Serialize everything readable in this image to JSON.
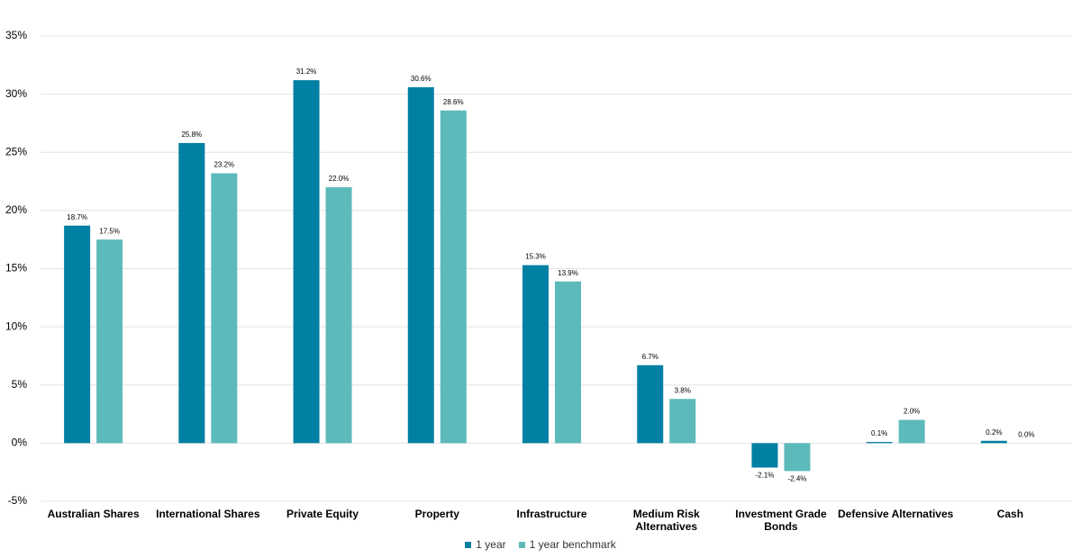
{
  "chart_data": {
    "type": "bar",
    "categories": [
      "Australian Shares",
      "International Shares",
      "Private Equity",
      "Property",
      "Infrastructure",
      "Medium Risk\nAlternatives",
      "Investment Grade\nBonds",
      "Defensive Alternatives",
      "Cash"
    ],
    "series": [
      {
        "name": "1 year",
        "color": "#0080a3",
        "values": [
          18.7,
          25.8,
          31.2,
          30.6,
          15.3,
          6.7,
          -2.1,
          0.1,
          0.2
        ],
        "value_labels": [
          "18.7%",
          "25.8%",
          "31.2%",
          "30.6%",
          "15.3%",
          "6.7%",
          "-2.1%",
          "0.1%",
          "0.2%"
        ]
      },
      {
        "name": "1 year benchmark",
        "color": "#5dbaba",
        "values": [
          17.5,
          23.2,
          22.0,
          28.6,
          13.9,
          3.8,
          -2.4,
          2.0,
          0.0
        ],
        "value_labels": [
          "17.5%",
          "23.2%",
          "22.0%",
          "28.6%",
          "13.9%",
          "3.8%",
          "-2.4%",
          "2.0%",
          "0.0%"
        ]
      }
    ],
    "ylim": [
      -5,
      35
    ],
    "yticks": [
      {
        "value": -5,
        "label": "-5%"
      },
      {
        "value": 0,
        "label": "0%"
      },
      {
        "value": 5,
        "label": "5%"
      },
      {
        "value": 10,
        "label": "10%"
      },
      {
        "value": 15,
        "label": "15%"
      },
      {
        "value": 20,
        "label": "20%"
      },
      {
        "value": 25,
        "label": "25%"
      },
      {
        "value": 30,
        "label": "30%"
      },
      {
        "value": 35,
        "label": "35%"
      }
    ],
    "grid": true,
    "legend": "bottom"
  }
}
